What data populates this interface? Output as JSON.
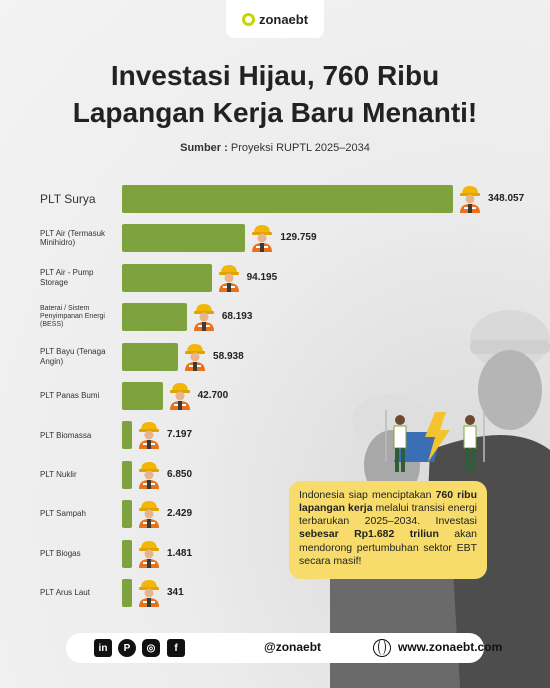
{
  "brand": {
    "name": "zonaebt"
  },
  "title_line1": "Investasi Hijau, 760 Ribu",
  "title_line2": "Lapangan Kerja Baru Menanti!",
  "source": {
    "label": "Sumber :",
    "text": "Proyeksi RUPTL 2025–2034"
  },
  "chart_data": {
    "type": "bar",
    "orientation": "horizontal",
    "categories": [
      "PLT Surya",
      "PLT Air (Termasuk Minihidro)",
      "PLT Air - Pump Storage",
      "Baterai / Sistem Penyimpanan Energi (BESS)",
      "PLT Bayu (Tenaga Angin)",
      "PLT Panas Bumi",
      "PLT Biomassa",
      "PLT Nuklir",
      "PLT Sampah",
      "PLT Biogas",
      "PLT Arus Laut"
    ],
    "values": [
      348057,
      129759,
      94195,
      68193,
      58938,
      42700,
      7197,
      6850,
      2429,
      1481,
      341
    ],
    "value_labels": [
      "348.057",
      "129.759",
      "94.195",
      "68.193",
      "58.938",
      "42.700",
      "7.197",
      "6.850",
      "2.429",
      "1.481",
      "341"
    ],
    "bar_color": "#7ea33e",
    "title": "",
    "xlabel": "",
    "ylabel": ""
  },
  "callout": {
    "p1": "Indonesia siap menciptakan ",
    "b1": "760 ribu lapangan kerja",
    "p2": " melalui transisi energi terbarukan 2025–2034. Investasi ",
    "b2": "sebesar Rp1.682 triliun",
    "p3": " akan mendorong pertumbuhan sektor EBT secara masif!"
  },
  "footer": {
    "icons": [
      "linkedin-icon",
      "pinterest-icon",
      "instagram-icon",
      "facebook-icon"
    ],
    "handle": "@zonaebt",
    "website": "www.zonaebt.com"
  }
}
